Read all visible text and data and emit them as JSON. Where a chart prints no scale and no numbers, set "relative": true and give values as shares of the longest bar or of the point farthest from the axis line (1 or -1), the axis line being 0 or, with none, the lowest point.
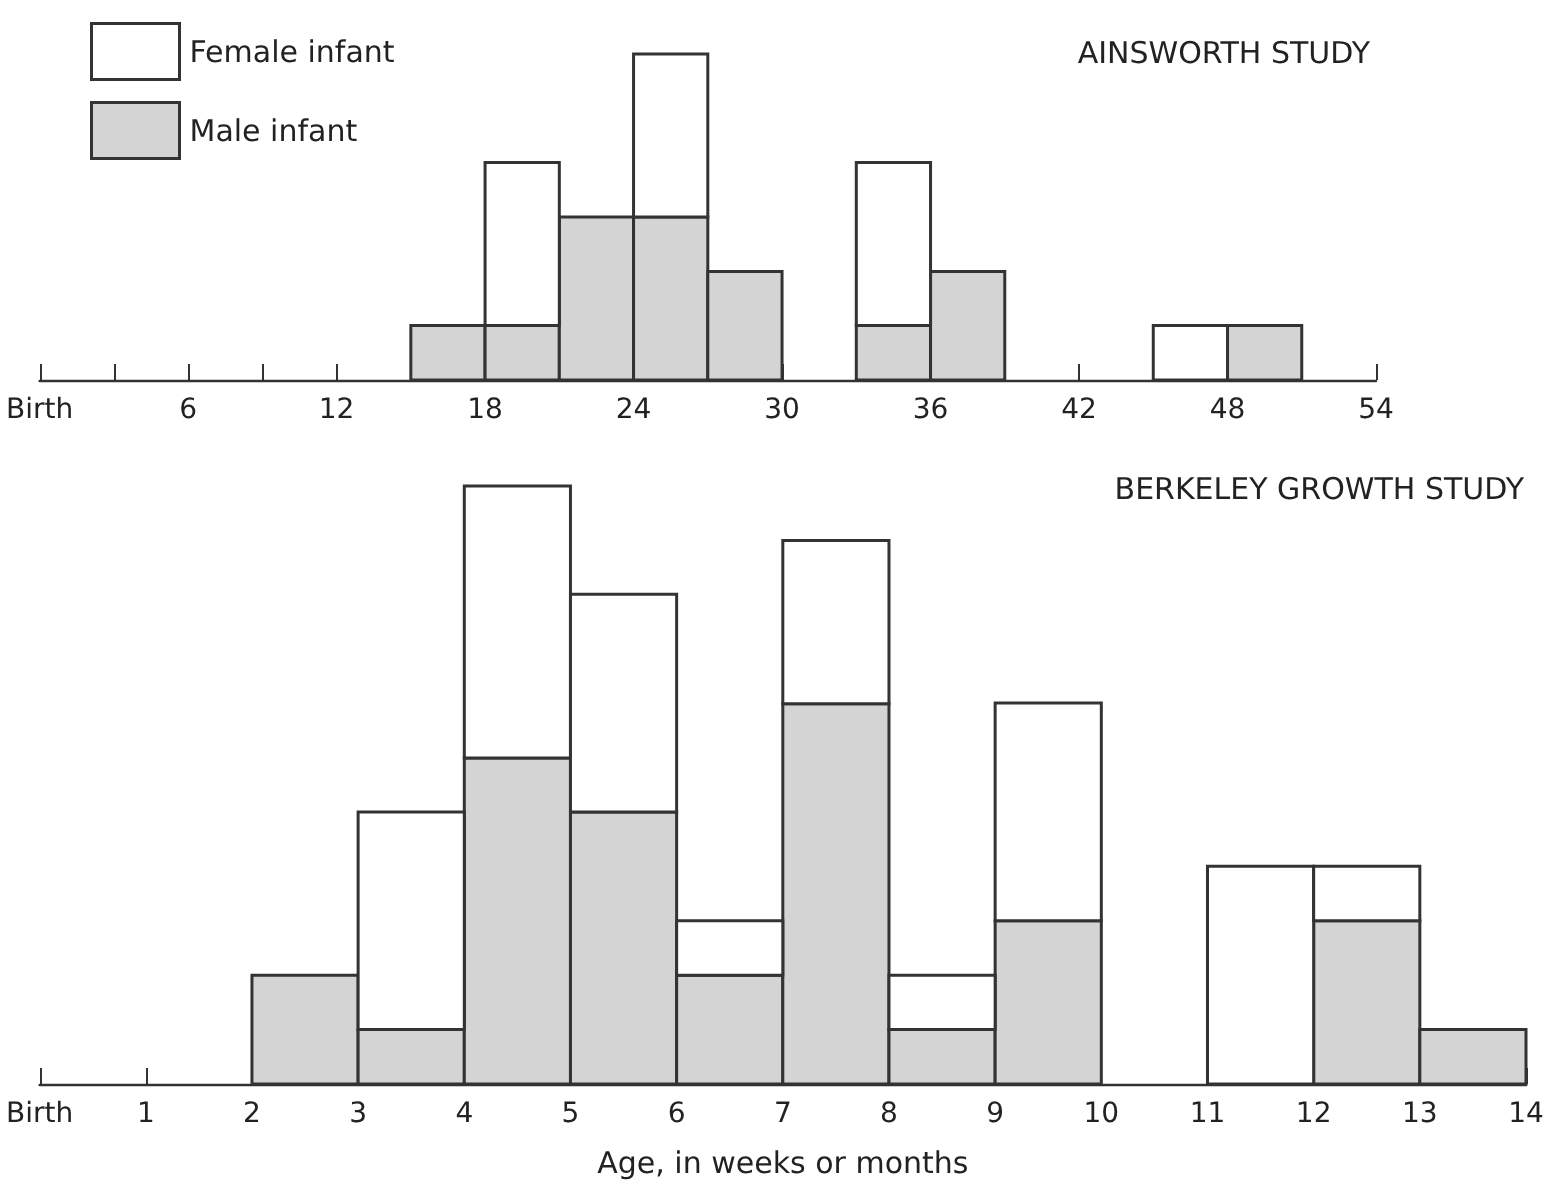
{
  "chart_data": [
    {
      "type": "bar",
      "title": "AINSWORTH STUDY",
      "stacked": true,
      "relative": true,
      "legend": "top left",
      "x": [
        16.5,
        19.5,
        22.5,
        25.5,
        28.5,
        31.5,
        34.5,
        37.5,
        40.5,
        43.5,
        46.5,
        49.5
      ],
      "xlim": [
        0,
        54
      ],
      "xticks": [
        {
          "value": 0,
          "label": "Birth"
        },
        {
          "value": 3,
          "label": null
        },
        6,
        {
          "value": 9,
          "label": null
        },
        12,
        18,
        24,
        30,
        36,
        42,
        48,
        54
      ],
      "series": [
        {
          "name": "Male infant",
          "color": "#d4d4d4",
          "values": [
            0.167,
            0.167,
            0.5,
            0.5,
            0.333,
            null,
            0.167,
            0.333,
            null,
            null,
            null,
            0.167
          ]
        },
        {
          "name": "Female infant",
          "color": "#ffffff",
          "values": [
            null,
            0.5,
            null,
            0.5,
            null,
            null,
            0.5,
            null,
            null,
            null,
            0.167,
            null
          ]
        }
      ]
    },
    {
      "type": "bar",
      "title": "BERKELEY GROWTH STUDY",
      "xlabel": "Age, in weeks or months",
      "stacked": true,
      "relative": true,
      "x": [
        2.5,
        3.5,
        4.5,
        5.5,
        6.5,
        7.5,
        8.5,
        9.5,
        10.5,
        11.5,
        12.5,
        13.5
      ],
      "xlim": [
        0,
        14
      ],
      "xticks": [
        {
          "value": 0,
          "label": "Birth"
        },
        1,
        2,
        3,
        4,
        5,
        6,
        7,
        8,
        9,
        10,
        11,
        12,
        13,
        14
      ],
      "series": [
        {
          "color": "#d4d4d4",
          "values": [
            0.182,
            0.091,
            0.545,
            0.455,
            0.182,
            0.636,
            0.091,
            0.273,
            null,
            null,
            0.273,
            0.091
          ]
        },
        {
          "color": "#ffffff",
          "values": [
            null,
            0.364,
            0.455,
            0.364,
            0.091,
            0.273,
            0.091,
            0.364,
            null,
            0.364,
            0.091,
            null
          ]
        }
      ]
    }
  ]
}
